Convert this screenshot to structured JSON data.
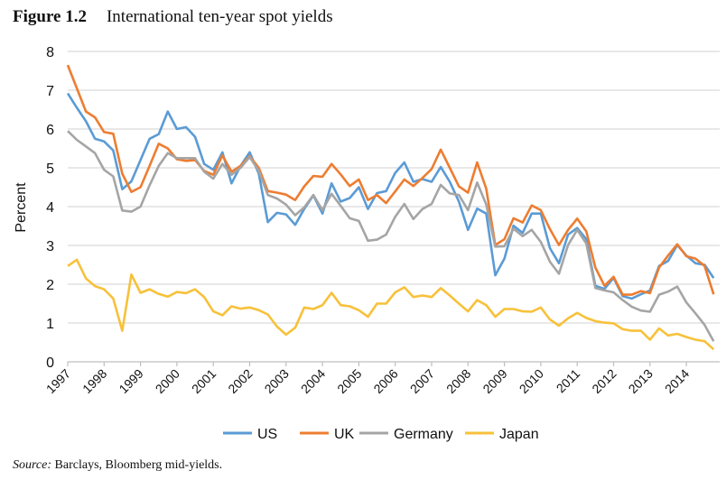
{
  "figure": {
    "number": "Figure 1.2",
    "title": "International ten-year spot yields"
  },
  "source": {
    "label": "Source:",
    "text": "Barclays, Bloomberg mid-yields."
  },
  "chart_data": {
    "type": "line",
    "title": "International ten-year spot yields",
    "xlabel": "",
    "ylabel": "Percent",
    "ylim": [
      0,
      8
    ],
    "yticks": [
      0,
      1,
      2,
      3,
      4,
      5,
      6,
      7,
      8
    ],
    "xticks": [
      "1997",
      "1998",
      "1999",
      "2000",
      "2001",
      "2002",
      "2003",
      "2004",
      "2005",
      "2006",
      "2007",
      "2008",
      "2009",
      "2010",
      "2011",
      "2012",
      "2013",
      "2014"
    ],
    "xlim": [
      1997,
      2014.8
    ],
    "grid": "horizontal",
    "legend": "bottom",
    "x": [
      1997,
      1997.25,
      1997.5,
      1997.75,
      1998,
      1998.25,
      1998.5,
      1998.75,
      1999,
      1999.25,
      1999.5,
      1999.75,
      2000,
      2000.25,
      2000.5,
      2000.75,
      2001,
      2001.25,
      2001.5,
      2001.75,
      2002,
      2002.25,
      2002.5,
      2002.75,
      2003,
      2003.25,
      2003.5,
      2003.75,
      2004,
      2004.25,
      2004.5,
      2004.75,
      2005,
      2005.25,
      2005.5,
      2005.75,
      2006,
      2006.25,
      2006.5,
      2006.75,
      2007,
      2007.25,
      2007.5,
      2007.75,
      2008,
      2008.25,
      2008.5,
      2008.75,
      2009,
      2009.25,
      2009.5,
      2009.75,
      2010,
      2010.25,
      2010.5,
      2010.75,
      2011,
      2011.25,
      2011.5,
      2011.75,
      2012,
      2012.25,
      2012.5,
      2012.75,
      2013,
      2013.25,
      2013.5,
      2013.75,
      2014,
      2014.25,
      2014.5,
      2014.75
    ],
    "series": [
      {
        "name": "US",
        "color": "#5b9bd5",
        "values": [
          6.92,
          6.55,
          6.2,
          5.75,
          5.68,
          5.45,
          4.45,
          4.65,
          5.2,
          5.75,
          5.87,
          6.45,
          6.0,
          6.05,
          5.8,
          5.1,
          4.95,
          5.4,
          4.6,
          5.05,
          5.4,
          4.85,
          3.6,
          3.84,
          3.8,
          3.53,
          3.94,
          4.29,
          3.82,
          4.6,
          4.13,
          4.22,
          4.5,
          3.94,
          4.35,
          4.4,
          4.87,
          5.14,
          4.64,
          4.71,
          4.64,
          5.02,
          4.64,
          4.13,
          3.4,
          3.95,
          3.82,
          2.23,
          2.66,
          3.51,
          3.32,
          3.82,
          3.82,
          2.93,
          2.54,
          3.28,
          3.45,
          3.16,
          1.96,
          1.88,
          2.16,
          1.69,
          1.63,
          1.74,
          1.84,
          2.47,
          2.6,
          3.01,
          2.74,
          2.54,
          2.5,
          2.16
        ]
      },
      {
        "name": "UK",
        "color": "#ed7d31",
        "values": [
          7.65,
          7.05,
          6.45,
          6.3,
          5.92,
          5.88,
          4.85,
          4.38,
          4.5,
          5.05,
          5.62,
          5.5,
          5.22,
          5.18,
          5.2,
          4.92,
          4.82,
          5.32,
          4.9,
          5.05,
          5.3,
          5.0,
          4.4,
          4.36,
          4.31,
          4.17,
          4.52,
          4.79,
          4.77,
          5.1,
          4.83,
          4.53,
          4.7,
          4.17,
          4.3,
          4.09,
          4.39,
          4.7,
          4.53,
          4.74,
          4.97,
          5.47,
          5.0,
          4.52,
          4.36,
          5.14,
          4.46,
          3.01,
          3.16,
          3.7,
          3.59,
          4.03,
          3.91,
          3.42,
          3.01,
          3.4,
          3.69,
          3.36,
          2.43,
          1.96,
          2.19,
          1.73,
          1.73,
          1.82,
          1.77,
          2.43,
          2.74,
          3.03,
          2.72,
          2.66,
          2.47,
          1.74
        ]
      },
      {
        "name": "Germany",
        "color": "#a5a5a5",
        "values": [
          5.95,
          5.72,
          5.55,
          5.38,
          4.95,
          4.78,
          3.9,
          3.87,
          4.0,
          4.55,
          5.05,
          5.38,
          5.25,
          5.25,
          5.25,
          4.9,
          4.72,
          5.1,
          4.82,
          5.0,
          5.28,
          4.92,
          4.3,
          4.21,
          4.05,
          3.78,
          3.98,
          4.3,
          3.91,
          4.33,
          4.02,
          3.7,
          3.63,
          3.12,
          3.15,
          3.28,
          3.74,
          4.07,
          3.68,
          3.94,
          4.07,
          4.56,
          4.34,
          4.3,
          3.91,
          4.62,
          4.05,
          2.97,
          2.98,
          3.43,
          3.24,
          3.4,
          3.09,
          2.58,
          2.27,
          3.01,
          3.4,
          3.05,
          1.9,
          1.84,
          1.79,
          1.59,
          1.42,
          1.32,
          1.29,
          1.73,
          1.81,
          1.94,
          1.53,
          1.25,
          0.95,
          0.53
        ]
      },
      {
        "name": "Japan",
        "color": "#f7c13a",
        "values": [
          2.47,
          2.63,
          2.15,
          1.95,
          1.87,
          1.63,
          0.8,
          2.25,
          1.78,
          1.87,
          1.75,
          1.68,
          1.8,
          1.77,
          1.87,
          1.67,
          1.3,
          1.2,
          1.43,
          1.37,
          1.4,
          1.33,
          1.22,
          0.91,
          0.7,
          0.88,
          1.4,
          1.36,
          1.46,
          1.78,
          1.46,
          1.43,
          1.33,
          1.16,
          1.5,
          1.5,
          1.79,
          1.92,
          1.67,
          1.71,
          1.67,
          1.9,
          1.71,
          1.5,
          1.3,
          1.59,
          1.46,
          1.16,
          1.36,
          1.36,
          1.3,
          1.29,
          1.4,
          1.09,
          0.93,
          1.12,
          1.26,
          1.13,
          1.05,
          1.01,
          0.99,
          0.84,
          0.8,
          0.8,
          0.57,
          0.86,
          0.68,
          0.72,
          0.64,
          0.57,
          0.53,
          0.32
        ]
      }
    ]
  }
}
